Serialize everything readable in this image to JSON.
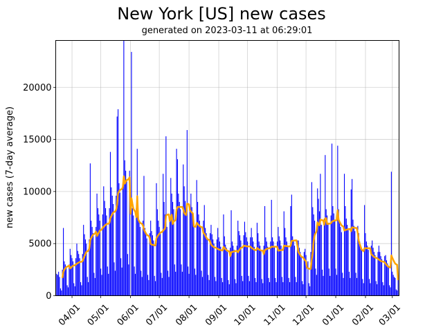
{
  "chart_data": {
    "type": "bar",
    "title": "New York [US] new cases",
    "subtitle": "generated on 2023-03-11 at 06:29:01",
    "xlabel": "",
    "ylabel": "new cases (7-day average)",
    "xlim": [
      "2022-03-15",
      "2023-03-08"
    ],
    "ylim": [
      0,
      24500
    ],
    "yticks": [
      0,
      5000,
      10000,
      15000,
      20000
    ],
    "ytick_labels": [
      "0",
      "5000",
      "10000",
      "15000",
      "20000"
    ],
    "xticks": [
      "2022-04-01",
      "2022-05-01",
      "2022-06-01",
      "2022-07-01",
      "2022-08-01",
      "2022-09-01",
      "2022-10-01",
      "2022-11-01",
      "2022-12-01",
      "2023-01-01",
      "2023-02-01",
      "2023-03-01"
    ],
    "xtick_labels": [
      "04/01",
      "05/01",
      "06/01",
      "07/01",
      "08/01",
      "09/01",
      "10/01",
      "11/01",
      "12/01",
      "01/01",
      "02/01",
      "03/01"
    ],
    "grid": true,
    "start_date": "2022-03-16",
    "series": [
      {
        "kind": "bar",
        "color": "#0000ff",
        "values": [
          2100,
          2000,
          2300,
          1800,
          700,
          500,
          2500,
          6500,
          3300,
          3000,
          2700,
          1000,
          800,
          3000,
          4500,
          3900,
          3600,
          3300,
          1200,
          900,
          3600,
          5000,
          4300,
          4000,
          3600,
          1300,
          1000,
          4000,
          6800,
          5900,
          5400,
          5000,
          1800,
          1300,
          5400,
          12700,
          7200,
          6600,
          6000,
          2200,
          1700,
          6600,
          9800,
          8400,
          7800,
          7200,
          2600,
          2000,
          7800,
          10500,
          9100,
          8400,
          7700,
          2800,
          2100,
          8400,
          13800,
          10400,
          9600,
          8800,
          3200,
          2400,
          9600,
          17200,
          17900,
          10800,
          9900,
          3600,
          2700,
          10800,
          24500,
          13000,
          12000,
          11000,
          4000,
          3000,
          12000,
          0,
          23400,
          8400,
          7700,
          2800,
          2100,
          8400,
          14100,
          7800,
          7200,
          6600,
          2400,
          1800,
          7200,
          11500,
          6500,
          6000,
          5500,
          2000,
          1500,
          6000,
          7200,
          6200,
          5800,
          5300,
          1900,
          1400,
          10800,
          8300,
          7200,
          6600,
          6100,
          2200,
          1700,
          11700,
          9000,
          7800,
          15300,
          6600,
          2400,
          1800,
          7200,
          11300,
          9800,
          9000,
          8300,
          3000,
          2300,
          14100,
          13100,
          9800,
          9000,
          8300,
          3000,
          2300,
          12600,
          10500,
          9100,
          8400,
          15900,
          2800,
          2100,
          8400,
          9800,
          8500,
          7800,
          7200,
          2600,
          2000,
          11100,
          9000,
          7800,
          7200,
          6600,
          2400,
          1800,
          7200,
          8700,
          6500,
          6000,
          5500,
          2000,
          1500,
          6000,
          6800,
          5900,
          5400,
          5000,
          1800,
          1400,
          5400,
          6500,
          5600,
          5200,
          4700,
          1700,
          1300,
          7800,
          5700,
          4900,
          4600,
          4200,
          1500,
          1100,
          4600,
          8200,
          5200,
          4800,
          4400,
          1600,
          1200,
          4800,
          7200,
          6200,
          5800,
          5300,
          1900,
          1400,
          5800,
          7100,
          6100,
          5600,
          5200,
          1900,
          1400,
          5600,
          6500,
          5600,
          5200,
          4700,
          1700,
          1300,
          7000,
          6000,
          5200,
          4800,
          4400,
          1600,
          1200,
          4800,
          8600,
          5600,
          5200,
          4700,
          1700,
          1300,
          5200,
          9200,
          5600,
          5200,
          4700,
          1700,
          1300,
          5200,
          6600,
          5700,
          5300,
          4800,
          1800,
          1300,
          8100,
          6500,
          5600,
          5200,
          4700,
          1700,
          1300,
          8600,
          9700,
          5700,
          5300,
          4800,
          1800,
          1300,
          5300,
          5300,
          4600,
          4200,
          3800,
          1400,
          1100,
          4200,
          4500,
          3900,
          0,
          3300,
          1200,
          900,
          4200,
          10900,
          8500,
          7800,
          7200,
          2600,
          2000,
          10300,
          9300,
          8100,
          11700,
          6800,
          2500,
          1900,
          7400,
          13500,
          8300,
          7700,
          7000,
          2600,
          1900,
          7700,
          14600,
          8600,
          7900,
          7300,
          2600,
          2000,
          14400,
          8300,
          7200,
          6600,
          6100,
          2200,
          1700,
          11700,
          8600,
          7400,
          6800,
          6300,
          2300,
          1700,
          10200,
          11200,
          7300,
          6700,
          6200,
          2200,
          1700,
          6700,
          6000,
          5200,
          4800,
          4400,
          1600,
          1200,
          8700,
          6000,
          5200,
          4800,
          4400,
          1600,
          1200,
          4800,
          5300,
          4600,
          4200,
          3900,
          1400,
          1100,
          4200,
          4800,
          4200,
          3800,
          3500,
          1300,
          1000,
          3800,
          3900,
          3400,
          3100,
          2900,
          1000,
          800,
          11900,
          2300,
          2000,
          1800,
          1700,
          600,
          500,
          1500
        ]
      },
      {
        "kind": "line",
        "color": "#ffa500",
        "window": 7
      }
    ]
  }
}
